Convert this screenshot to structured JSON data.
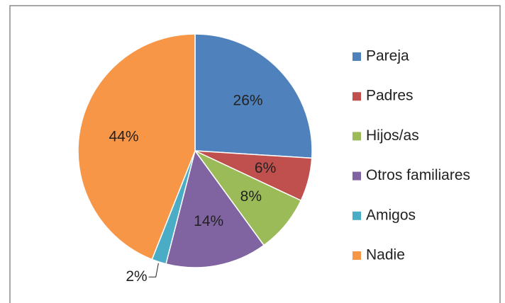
{
  "chart_data": {
    "type": "pie",
    "categories": [
      "Pareja",
      "Padres",
      "Hijos/as",
      "Otros familiares",
      "Amigos",
      "Nadie"
    ],
    "values": [
      26,
      6,
      8,
      14,
      2,
      44
    ],
    "value_labels": [
      "26%",
      "6%",
      "8%",
      "14%",
      "2%",
      "44%"
    ],
    "colors": [
      "#4F81BD",
      "#C0504D",
      "#9BBB59",
      "#8064A2",
      "#4BACC6",
      "#F79646"
    ],
    "legend": "right"
  }
}
